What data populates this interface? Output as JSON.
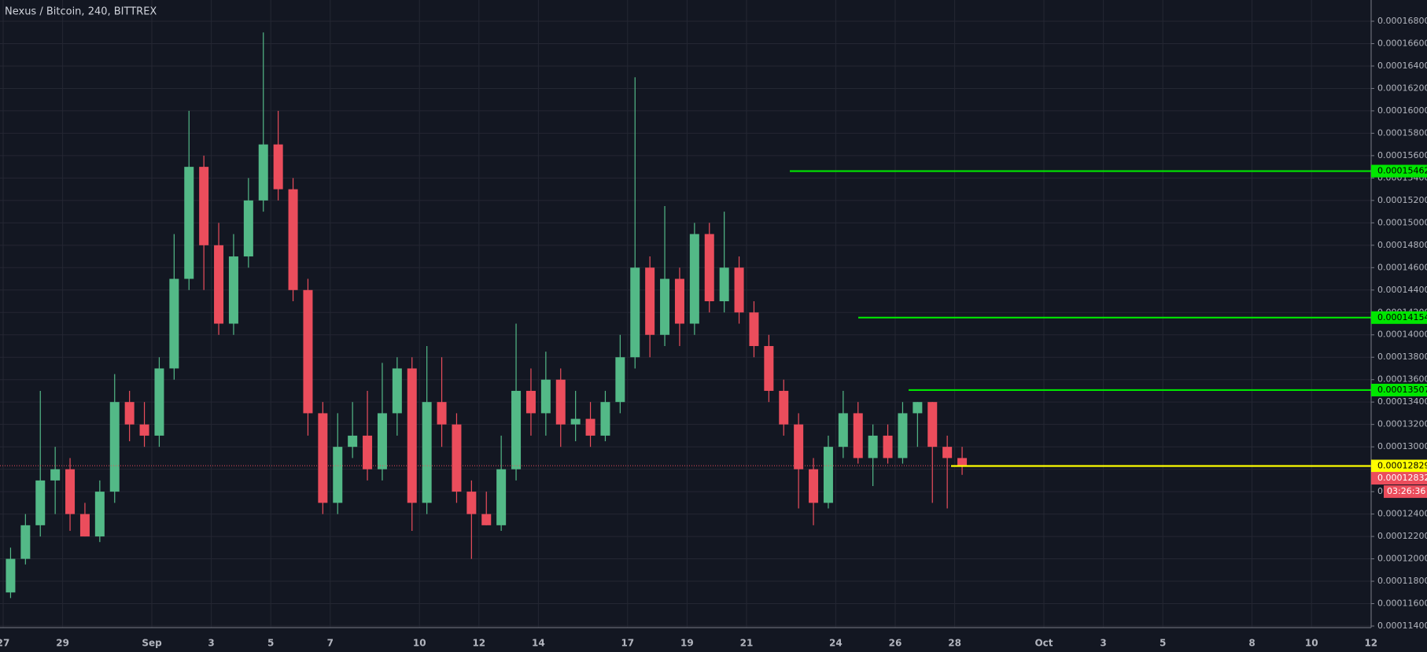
{
  "chart_data": {
    "type": "candlestick",
    "title": "Nexus / Bitcoin, 240, BITTREX",
    "categories": [
      "27",
      null,
      null,
      null,
      "29",
      null,
      null,
      null,
      null,
      null,
      "Sep",
      null,
      null,
      null,
      "3",
      null,
      null,
      null,
      "5",
      null,
      null,
      null,
      "7",
      null,
      null,
      null,
      null,
      null,
      "10",
      null,
      null,
      null,
      "12",
      null,
      null,
      null,
      "14",
      null,
      null,
      null,
      null,
      null,
      "17",
      null,
      null,
      null,
      "19",
      null,
      null,
      null,
      "21",
      null,
      null,
      null,
      null,
      null,
      "24",
      null,
      null,
      null,
      "26",
      null,
      null,
      null,
      "28",
      null,
      null,
      null,
      null,
      null,
      "Oct",
      null,
      null,
      null,
      "3",
      null,
      null,
      null,
      "5",
      null,
      null,
      null,
      null,
      null,
      "8",
      null,
      null,
      null,
      "10",
      null,
      null,
      null,
      "12",
      null
    ],
    "open": [
      0.000117,
      0.00012,
      0.000123,
      0.000127,
      0.000128,
      0.000124,
      0.000122,
      0.000126,
      0.000134,
      0.000132,
      0.000131,
      0.000137,
      0.000145,
      0.000155,
      0.000148,
      0.000141,
      0.000147,
      0.000152,
      0.000157,
      0.000153,
      0.000144,
      0.000133,
      0.000125,
      0.00013,
      0.000131,
      0.000128,
      0.000133,
      0.000137,
      0.000125,
      0.000134,
      0.000132,
      0.000126,
      0.000124,
      0.000123,
      0.000128,
      0.000135,
      0.000133,
      0.000136,
      0.000132,
      0.0001325,
      0.000131,
      0.000134,
      0.000138,
      0.000146,
      0.00014,
      0.000145,
      0.000141,
      0.000149,
      0.000143,
      0.000146,
      0.000142,
      0.000139,
      0.000135,
      0.000132,
      0.000128,
      0.000125,
      0.00013,
      0.000133,
      0.000129,
      0.000131,
      0.000129,
      0.000133,
      0.000134,
      0.00013,
      0.000129,
      null,
      null,
      null,
      null,
      null,
      null,
      null,
      null,
      null,
      null,
      null,
      null,
      null,
      null,
      null,
      null,
      null,
      null,
      null,
      null,
      null,
      null,
      null,
      null,
      null,
      null,
      null,
      null,
      null
    ],
    "high": [
      0.000121,
      0.000124,
      0.000135,
      0.00013,
      0.000129,
      0.000125,
      0.000127,
      0.0001365,
      0.000135,
      0.000134,
      0.000138,
      0.000149,
      0.00016,
      0.000156,
      0.00015,
      0.000149,
      0.000154,
      0.000167,
      0.00016,
      0.000154,
      0.000145,
      0.000134,
      0.000133,
      0.000134,
      0.000135,
      0.0001375,
      0.000138,
      0.000138,
      0.000139,
      0.000138,
      0.000133,
      0.000127,
      0.000126,
      0.000131,
      0.000141,
      0.000137,
      0.0001385,
      0.000137,
      0.000135,
      0.000134,
      0.000135,
      0.00014,
      0.000163,
      0.000147,
      0.0001515,
      0.000146,
      0.00015,
      0.00015,
      0.000151,
      0.000147,
      0.000143,
      0.00014,
      0.000136,
      0.000133,
      0.000129,
      0.000131,
      0.000135,
      0.000134,
      0.000132,
      0.000132,
      0.000134,
      0.000134,
      0.000134,
      0.000131,
      0.00013,
      null,
      null,
      null,
      null,
      null,
      null,
      null,
      null,
      null,
      null,
      null,
      null,
      null,
      null,
      null,
      null,
      null,
      null,
      null,
      null,
      null,
      null,
      null,
      null,
      null,
      null,
      null,
      null,
      null
    ],
    "low": [
      0.0001165,
      0.0001195,
      0.000122,
      0.000124,
      0.0001225,
      0.000122,
      0.0001215,
      0.000125,
      0.0001305,
      0.00013,
      0.00013,
      0.000136,
      0.000144,
      0.000144,
      0.00014,
      0.00014,
      0.000146,
      0.000151,
      0.000152,
      0.000143,
      0.000131,
      0.000124,
      0.000124,
      0.000129,
      0.000127,
      0.000127,
      0.000131,
      0.0001225,
      0.000124,
      0.00013,
      0.000125,
      0.00012,
      0.000123,
      0.0001225,
      0.000127,
      0.000131,
      0.000131,
      0.00013,
      0.0001305,
      0.00013,
      0.0001305,
      0.000133,
      0.000137,
      0.000138,
      0.000139,
      0.000139,
      0.00014,
      0.000142,
      0.000142,
      0.000141,
      0.000138,
      0.000134,
      0.000131,
      0.0001245,
      0.000123,
      0.0001245,
      0.000129,
      0.0001285,
      0.0001265,
      0.0001285,
      0.0001285,
      0.00013,
      0.000125,
      0.0001245,
      0.0001275,
      null,
      null,
      null,
      null,
      null,
      null,
      null,
      null,
      null,
      null,
      null,
      null,
      null,
      null,
      null,
      null,
      null,
      null,
      null,
      null,
      null,
      null,
      null,
      null,
      null,
      null,
      null,
      null,
      null
    ],
    "close": [
      0.00012,
      0.000123,
      0.000127,
      0.000128,
      0.000124,
      0.000122,
      0.000126,
      0.000134,
      0.000132,
      0.000131,
      0.000137,
      0.000145,
      0.000155,
      0.000148,
      0.000141,
      0.000147,
      0.000152,
      0.000157,
      0.000153,
      0.000144,
      0.000133,
      0.000125,
      0.00013,
      0.000131,
      0.000128,
      0.000133,
      0.000137,
      0.000125,
      0.000134,
      0.000132,
      0.000126,
      0.000124,
      0.000123,
      0.000128,
      0.000135,
      0.000133,
      0.000136,
      0.000132,
      0.0001325,
      0.000131,
      0.000134,
      0.000138,
      0.000146,
      0.00014,
      0.000145,
      0.000141,
      0.000149,
      0.000143,
      0.000146,
      0.000142,
      0.000139,
      0.000135,
      0.000132,
      0.000128,
      0.000125,
      0.00013,
      0.000133,
      0.000129,
      0.000131,
      0.000129,
      0.000133,
      0.000134,
      0.00013,
      0.000129,
      0.00012832,
      null,
      null,
      null,
      null,
      null,
      null,
      null,
      null,
      null,
      null,
      null,
      null,
      null,
      null,
      null,
      null,
      null,
      null,
      null,
      null,
      null,
      null,
      null,
      null,
      null,
      null,
      null,
      null,
      null
    ],
    "up_color": "#53b987",
    "down_color": "#eb4d5c",
    "levels": [
      {
        "value": 0.00015462,
        "color": "#00e600"
      },
      {
        "value": 0.00014154,
        "color": "#00e600"
      },
      {
        "value": 0.00013507,
        "color": "#00e600"
      },
      {
        "value": 0.00012829,
        "color": "#ffff00"
      }
    ],
    "last_price": 0.00012832,
    "countdown": "03:26:36",
    "ylim": [
      0.000114,
      0.000168
    ],
    "yticks": [
      {
        "value": 0.000114,
        "label": "0.00011400"
      },
      {
        "value": 0.000116,
        "label": "0.00011600"
      },
      {
        "value": 0.000118,
        "label": "0.00011800"
      },
      {
        "value": 0.00012,
        "label": "0.00012000"
      },
      {
        "value": 0.000122,
        "label": "0.00012200"
      },
      {
        "value": 0.000124,
        "label": "0.00012400"
      },
      {
        "value": 0.000126,
        "label": "0.00012600"
      },
      {
        "value": 0.000128,
        "label": "0.00012800"
      },
      {
        "value": 0.00013,
        "label": "0.00013000"
      },
      {
        "value": 0.000132,
        "label": "0.00013200"
      },
      {
        "value": 0.000134,
        "label": "0.00013400"
      },
      {
        "value": 0.000136,
        "label": "0.00013600"
      },
      {
        "value": 0.000138,
        "label": "0.00013800"
      },
      {
        "value": 0.00014,
        "label": "0.00014000"
      },
      {
        "value": 0.000142,
        "label": "0.00014200"
      },
      {
        "value": 0.000144,
        "label": "0.00014400"
      },
      {
        "value": 0.000146,
        "label": "0.00014600"
      },
      {
        "value": 0.000148,
        "label": "0.00014800"
      },
      {
        "value": 0.00015,
        "label": "0.00015000"
      },
      {
        "value": 0.000152,
        "label": "0.00015200"
      },
      {
        "value": 0.000154,
        "label": "0.00015400"
      },
      {
        "value": 0.000156,
        "label": "0.00015600"
      },
      {
        "value": 0.000158,
        "label": "0.00015800"
      },
      {
        "value": 0.00016,
        "label": "0.00016000"
      },
      {
        "value": 0.000162,
        "label": "0.00016200"
      },
      {
        "value": 0.000164,
        "label": "0.00016400"
      },
      {
        "value": 0.000166,
        "label": "0.00016600"
      },
      {
        "value": 0.000168,
        "label": "0.00016800"
      }
    ],
    "grid": true
  }
}
